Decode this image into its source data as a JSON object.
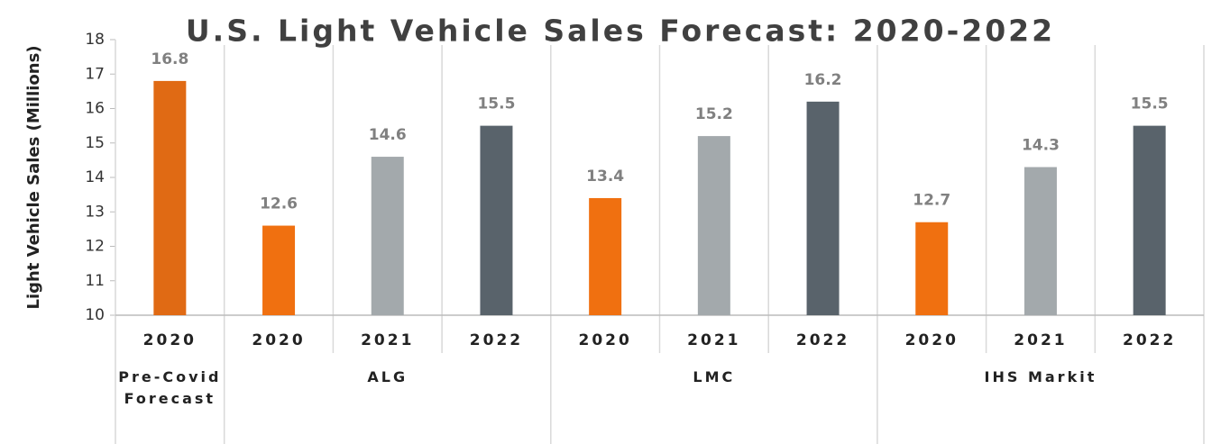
{
  "chart_data": {
    "type": "bar",
    "title": "U.S. Light Vehicle Sales Forecast: 2020-2022",
    "y_label": "Light Vehicle Sales (Millions)",
    "categories": [
      "2020",
      "2020",
      "2021",
      "2022",
      "2020",
      "2021",
      "2022",
      "2020",
      "2021",
      "2022"
    ],
    "groups": [
      {
        "label": "Pre-Covid Forecast",
        "span": 1
      },
      {
        "label": "ALG",
        "span": 3
      },
      {
        "label": "LMC",
        "span": 3
      },
      {
        "label": "IHS Markit",
        "span": 3
      }
    ],
    "values": [
      16.8,
      12.6,
      14.6,
      15.5,
      13.4,
      15.2,
      16.2,
      12.7,
      14.3,
      15.5
    ],
    "colors": [
      "#e06a14",
      "#f07010",
      "#a3a9ac",
      "#59636b",
      "#f07010",
      "#a3a9ac",
      "#59636b",
      "#f07010",
      "#a3a9ac",
      "#59636b"
    ],
    "ylim": [
      10,
      18
    ],
    "yticks": [
      10,
      11,
      12,
      13,
      14,
      15,
      16,
      17,
      18
    ],
    "grid": "vertical"
  }
}
